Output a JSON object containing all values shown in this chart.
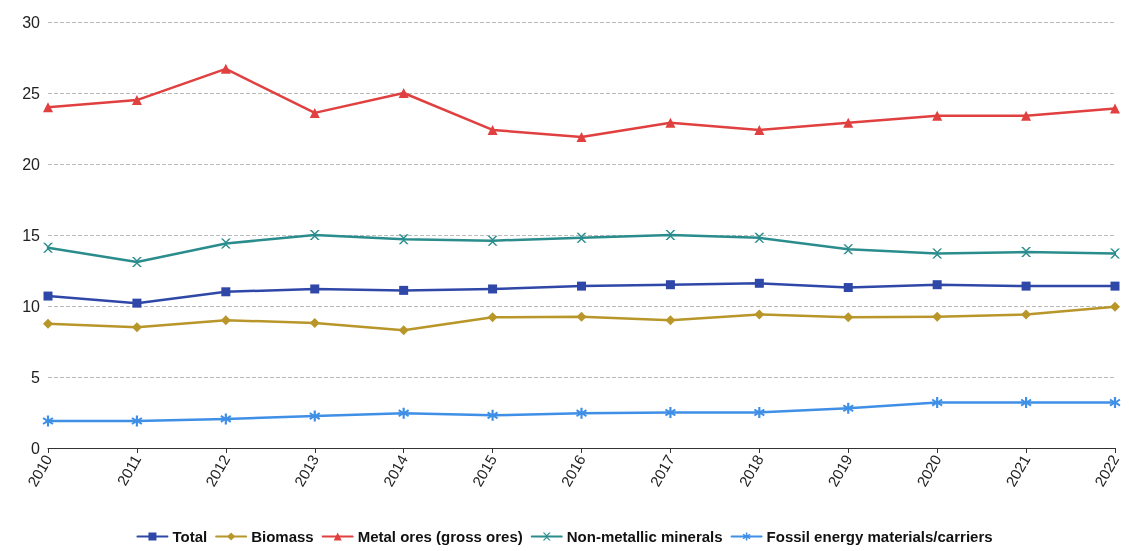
{
  "chart_data": {
    "type": "line",
    "categories": [
      "2010",
      "2011",
      "2012",
      "2013",
      "2014",
      "2015",
      "2016",
      "2017",
      "2018",
      "2019",
      "2020",
      "2021",
      "2022"
    ],
    "series": [
      {
        "name": "Total",
        "color": "#2f48a8",
        "marker": "square",
        "values": [
          10.7,
          10.2,
          11.0,
          11.2,
          11.1,
          11.2,
          11.4,
          11.5,
          11.6,
          11.3,
          11.5,
          11.4,
          11.4
        ]
      },
      {
        "name": "Biomass",
        "color": "#b8962a",
        "marker": "diamond",
        "values": [
          8.75,
          8.5,
          9.0,
          8.8,
          8.3,
          9.2,
          9.25,
          9.0,
          9.4,
          9.2,
          9.25,
          9.4,
          9.95
        ]
      },
      {
        "name": "Metal ores (gross ores)",
        "color": "#e0403f",
        "marker": "triangle",
        "values": [
          24.0,
          24.5,
          26.7,
          23.6,
          25.0,
          22.4,
          21.9,
          22.9,
          22.4,
          22.9,
          23.4,
          23.4,
          23.9
        ]
      },
      {
        "name": "Non-metallic minerals",
        "color": "#2a8c8c",
        "marker": "cross",
        "values": [
          14.1,
          13.1,
          14.4,
          15.0,
          14.7,
          14.6,
          14.8,
          15.0,
          14.8,
          14.0,
          13.7,
          13.8,
          13.7
        ]
      },
      {
        "name": "Fossil energy materials/carriers",
        "color": "#3f8fe6",
        "marker": "star",
        "values": [
          1.9,
          1.9,
          2.05,
          2.25,
          2.45,
          2.3,
          2.45,
          2.5,
          2.5,
          2.8,
          3.2,
          3.2,
          3.2
        ]
      }
    ],
    "ylim": [
      0,
      30
    ],
    "yticks": [
      0,
      5,
      10,
      15,
      20,
      25,
      30
    ],
    "grid": "y",
    "legend": "bottom",
    "line_style": "solid"
  }
}
